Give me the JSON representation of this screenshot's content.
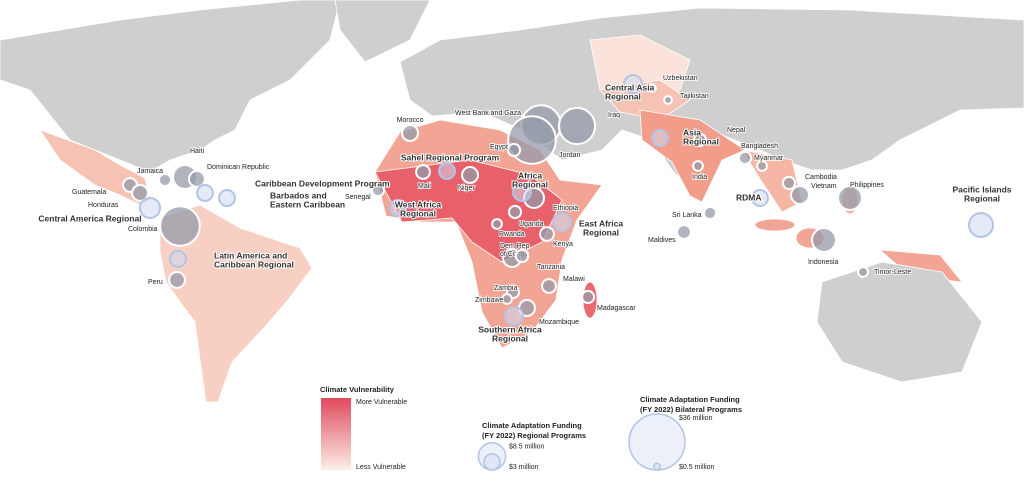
{
  "map": {
    "bilateral_programs": [
      {
        "label": [
          "Uzbekistan"
        ],
        "funding": 0.7
      },
      {
        "label": [
          "Tajikistan"
        ],
        "funding": 0.7
      },
      {
        "label": [
          "Nepal"
        ],
        "funding": 1.7
      },
      {
        "label": [
          "Bangladesh"
        ],
        "funding": 1.7
      },
      {
        "label": [
          "Myanmar"
        ],
        "funding": 1.1
      },
      {
        "label": [
          "India"
        ],
        "funding": 1.1
      },
      {
        "label": [
          "Sri Lanka"
        ],
        "funding": 1.7
      },
      {
        "label": [
          "Maldives"
        ],
        "funding": 2.2
      },
      {
        "label": [
          "Cambodia"
        ],
        "funding": 1.7
      },
      {
        "label": [
          "Vietnam"
        ],
        "funding": 3.7
      },
      {
        "label": [
          "Philippines"
        ],
        "funding": 6.6
      },
      {
        "label": [
          "Indonesia"
        ],
        "funding": 6.6
      },
      {
        "label": [
          "Timor-Leste"
        ],
        "funding": 1.1
      },
      {
        "label": [
          "Morocco"
        ],
        "funding": 2.9
      },
      {
        "label": [
          "West Bank and Gaza"
        ],
        "funding": 18
      },
      {
        "label": [
          "Iraq"
        ],
        "funding": 15
      },
      {
        "label": [
          "Jordan"
        ],
        "funding": 26
      },
      {
        "label": [
          "Egypt"
        ],
        "funding": 1.7
      },
      {
        "label": [
          "Senegal"
        ],
        "funding": 1.7
      },
      {
        "label": [
          "Mali"
        ],
        "funding": 2.2
      },
      {
        "label": [
          "Niger"
        ],
        "funding": 2.9
      },
      {
        "label": [
          "Ethiopia"
        ],
        "funding": 4.6
      },
      {
        "label": [
          "Uganda"
        ],
        "funding": 1.7
      },
      {
        "label": [
          "Rwanda"
        ],
        "funding": 1.1
      },
      {
        "label": [
          "Dem Rep",
          "of Congo"
        ],
        "funding": 3.7
      },
      {
        "label": [
          "Kenya"
        ],
        "funding": 2.2
      },
      {
        "label": [
          "Tanzania"
        ],
        "funding": 1.7
      },
      {
        "label": [
          "Malawi"
        ],
        "funding": 2.2
      },
      {
        "label": [
          "Zambia"
        ],
        "funding": 1.7
      },
      {
        "label": [
          "Zimbawe"
        ],
        "funding": 1.1
      },
      {
        "label": [
          "Mozambique"
        ],
        "funding": 2.9
      },
      {
        "label": [
          "Madagascar"
        ],
        "funding": 1.7
      },
      {
        "label": [
          "Haiti"
        ],
        "funding": 6.6
      },
      {
        "label": [
          "Dominican Republic"
        ],
        "funding": 2.9
      },
      {
        "label": [
          "Jamaica"
        ],
        "funding": 1.7
      },
      {
        "label": [
          "Guatemala"
        ],
        "funding": 2.2
      },
      {
        "label": [
          "Honduras"
        ],
        "funding": 2.9
      },
      {
        "label": [
          "Colombia"
        ],
        "funding": 18
      },
      {
        "label": [
          "Peru"
        ],
        "funding": 2.9
      }
    ],
    "regional_programs": [
      {
        "label": [
          "Central Asia",
          "Regional"
        ],
        "funding": 3.7
      },
      {
        "label": [
          "Asia",
          "Regional"
        ],
        "funding": 2.9
      },
      {
        "label": [
          "Sahel Regional Program"
        ],
        "funding": 2.9
      },
      {
        "label": [
          "Africa",
          "Regional"
        ],
        "funding": 3.7
      },
      {
        "label": [
          "West Africa",
          "Regional"
        ],
        "funding": 2.9
      },
      {
        "label": [
          "East Africa",
          "Regional"
        ],
        "funding": 3.7
      },
      {
        "label": [
          "Southern Africa",
          "Regional"
        ],
        "funding": 3.7
      },
      {
        "label": [
          "Caribbean Development Program"
        ],
        "funding": 2.9
      },
      {
        "label": [
          "Barbados and",
          "Eastern Caribbean"
        ],
        "funding": 2.9
      },
      {
        "label": [
          "Central America Regional"
        ],
        "funding": 4.6
      },
      {
        "label": [
          "Latin America and",
          "Caribbean Regional"
        ],
        "funding": 2.9
      },
      {
        "label": [
          "RDMA"
        ],
        "funding": 2.9
      },
      {
        "label": [
          "Pacific Islands",
          "Regional"
        ],
        "funding": 6.6
      }
    ],
    "legend": {
      "vulnerability": {
        "title": "Climate Vulnerability",
        "high": "More Vulnerable",
        "low": "Less Vulnerable"
      },
      "regional": {
        "title": [
          "Climate Adaptation Funding",
          "(FY 2022) Regional Programs"
        ],
        "sizes": [
          {
            "value": 8.5,
            "label": "$8.5 million"
          },
          {
            "value": 3,
            "label": "$3 million"
          }
        ]
      },
      "bilateral": {
        "title": [
          "Climate Adaptation Funding",
          "(FY 2022) Bilateral Programs"
        ],
        "sizes": [
          {
            "value": 36,
            "label": "$36 million"
          },
          {
            "value": 0.5,
            "label": "$0.5 million"
          }
        ]
      }
    }
  }
}
